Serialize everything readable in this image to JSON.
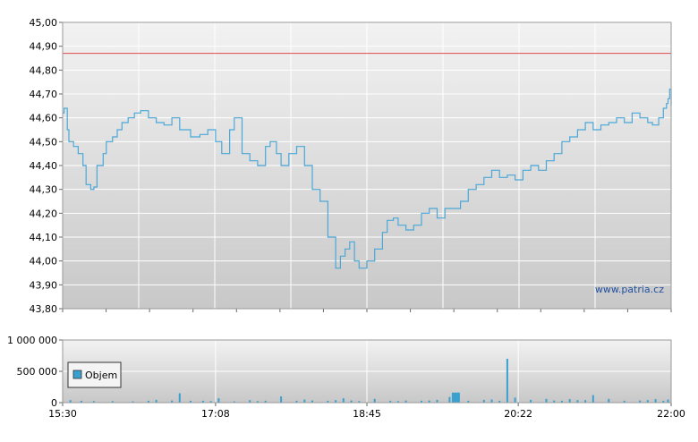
{
  "watermark": "www.patria.cz",
  "colors": {
    "price_line": "#4aa8d8",
    "reference_line": "#e04848",
    "volume_bar": "#3aa0d0",
    "grid": "#ffffff",
    "plot_bg_top": "#f2f2f2",
    "plot_bg_bottom": "#c8c8c8"
  },
  "chart_data": [
    {
      "type": "line",
      "name": "price",
      "ylim": [
        43.8,
        45.0
      ],
      "y_ticks": [
        "43,80",
        "43,90",
        "44,00",
        "44,10",
        "44,20",
        "44,30",
        "44,40",
        "44,50",
        "44,60",
        "44,70",
        "44,80",
        "44,90",
        "45,00"
      ],
      "y_tick_values": [
        43.8,
        43.9,
        44.0,
        44.1,
        44.2,
        44.3,
        44.4,
        44.5,
        44.6,
        44.7,
        44.8,
        44.9,
        45.0
      ],
      "xlim_minutes": [
        930,
        1320
      ],
      "reference_line": 44.87,
      "series": [
        {
          "x": [
            "15:30",
            "15:31",
            "15:33",
            "15:34",
            "15:37",
            "15:40",
            "15:43",
            "15:45",
            "15:48",
            "15:50",
            "15:52",
            "15:56",
            "15:58",
            "16:00",
            "16:02",
            "16:05",
            "16:08",
            "16:12",
            "16:16",
            "16:20",
            "16:25",
            "16:30",
            "16:35",
            "16:40",
            "16:45",
            "16:52",
            "16:58",
            "17:03",
            "17:08",
            "17:12",
            "17:17",
            "17:20",
            "17:25",
            "17:30",
            "17:35",
            "17:40",
            "17:43",
            "17:47",
            "17:50",
            "17:55",
            "18:00",
            "18:05",
            "18:10",
            "18:15",
            "18:20",
            "18:25",
            "18:28",
            "18:31",
            "18:34",
            "18:37",
            "18:40",
            "18:45",
            "18:50",
            "18:55",
            "18:58",
            "19:02",
            "19:05",
            "19:10",
            "19:15",
            "19:20",
            "19:25",
            "19:30",
            "19:35",
            "19:40",
            "19:45",
            "19:50",
            "19:55",
            "20:00",
            "20:05",
            "20:10",
            "20:15",
            "20:20",
            "20:25",
            "20:30",
            "20:35",
            "20:40",
            "20:45",
            "20:50",
            "20:55",
            "21:00",
            "21:05",
            "21:10",
            "21:15",
            "21:20",
            "21:25",
            "21:30",
            "21:35",
            "21:40",
            "21:45",
            "21:48",
            "21:52",
            "21:55",
            "21:57",
            "21:58",
            "21:59",
            "22:00"
          ],
          "y": [
            44.62,
            44.64,
            44.55,
            44.5,
            44.48,
            44.45,
            44.4,
            44.32,
            44.3,
            44.31,
            44.4,
            44.45,
            44.5,
            44.5,
            44.52,
            44.55,
            44.58,
            44.6,
            44.62,
            44.63,
            44.6,
            44.58,
            44.57,
            44.6,
            44.55,
            44.52,
            44.53,
            44.55,
            44.5,
            44.45,
            44.55,
            44.6,
            44.45,
            44.42,
            44.4,
            44.48,
            44.5,
            44.45,
            44.4,
            44.45,
            44.48,
            44.4,
            44.3,
            44.25,
            44.1,
            43.97,
            44.02,
            44.05,
            44.08,
            44.0,
            43.97,
            44.0,
            44.05,
            44.12,
            44.17,
            44.18,
            44.15,
            44.13,
            44.15,
            44.2,
            44.22,
            44.18,
            44.22,
            44.22,
            44.25,
            44.3,
            44.32,
            44.35,
            44.38,
            44.35,
            44.36,
            44.34,
            44.38,
            44.4,
            44.38,
            44.42,
            44.45,
            44.5,
            44.52,
            44.55,
            44.58,
            44.55,
            44.57,
            44.58,
            44.6,
            44.58,
            44.62,
            44.6,
            44.58,
            44.57,
            44.6,
            44.64,
            44.66,
            44.68,
            44.72,
            44.65
          ]
        }
      ]
    },
    {
      "type": "bar",
      "name": "volume",
      "ylim": [
        0,
        1000000
      ],
      "y_ticks": [
        "0",
        "500 000",
        "1 000 000"
      ],
      "y_tick_values": [
        0,
        500000,
        1000000
      ],
      "x_ticks": [
        "15:30",
        "17:08",
        "18:45",
        "20:22",
        "22:00"
      ],
      "x_tick_minutes": [
        930,
        1028,
        1125,
        1222,
        1320
      ],
      "legend": "Objem",
      "legend_position": "left",
      "series": [
        {
          "x_minutes": [
            935,
            942,
            950,
            962,
            975,
            985,
            990,
            1000,
            1005,
            1012,
            1020,
            1025,
            1030,
            1040,
            1050,
            1055,
            1060,
            1070,
            1080,
            1085,
            1090,
            1100,
            1105,
            1110,
            1115,
            1120,
            1130,
            1140,
            1145,
            1150,
            1160,
            1165,
            1170,
            1178,
            1180,
            1181,
            1182,
            1183,
            1184,
            1190,
            1200,
            1205,
            1210,
            1215,
            1220,
            1230,
            1240,
            1245,
            1250,
            1255,
            1260,
            1265,
            1270,
            1280,
            1290,
            1300,
            1305,
            1310,
            1315,
            1318
          ],
          "values": [
            40000,
            30000,
            25000,
            25000,
            20000,
            30000,
            45000,
            35000,
            150000,
            30000,
            30000,
            25000,
            70000,
            20000,
            40000,
            25000,
            30000,
            100000,
            30000,
            50000,
            35000,
            30000,
            40000,
            70000,
            35000,
            25000,
            60000,
            30000,
            25000,
            35000,
            30000,
            35000,
            45000,
            90000,
            160000,
            160000,
            160000,
            160000,
            160000,
            30000,
            45000,
            50000,
            30000,
            700000,
            80000,
            45000,
            60000,
            35000,
            30000,
            55000,
            40000,
            40000,
            120000,
            60000,
            30000,
            35000,
            40000,
            55000,
            30000,
            50000
          ]
        }
      ]
    }
  ]
}
